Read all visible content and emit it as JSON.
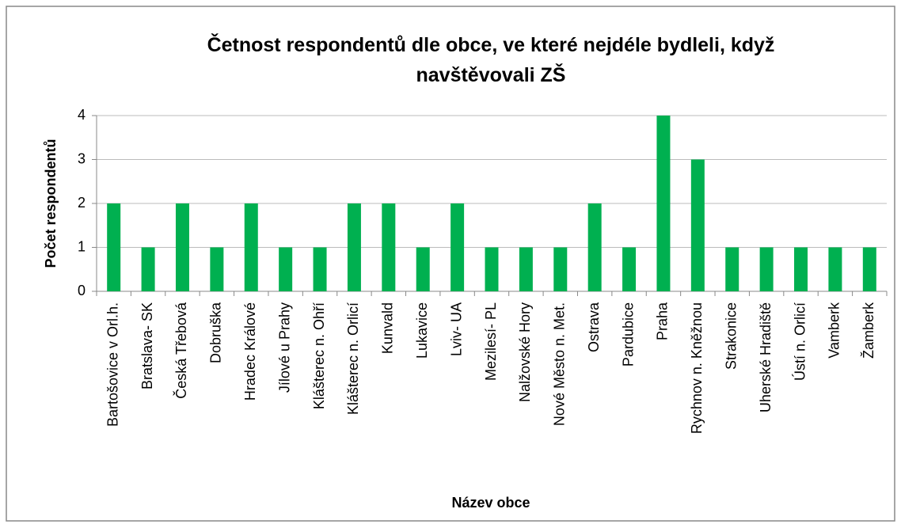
{
  "chart_data": {
    "type": "bar",
    "title": "Četnost respondentů dle obce, ve které nejdéle bydleli, když navštěvovali ZŠ",
    "xlabel": "Název obce",
    "ylabel": "Počet respondentů",
    "categories": [
      "Bartošovice v Orl.h.",
      "Bratslava- SK",
      "Česká Třebová",
      "Dobruška",
      "Hradec Králové",
      "Jílové u Prahy",
      "Klášterec n. Ohří",
      "Klášterec n. Orlicí",
      "Kunvald",
      "Lukavice",
      "Lviv- UA",
      "Mezilesí- PL",
      "Nalžovské Hory",
      "Nové Město n. Met.",
      "Ostrava",
      "Pardubice",
      "Praha",
      "Rychnov n. Kněžnou",
      "Strakonice",
      "Uherské Hradiště",
      "Ústí n. Orlicí",
      "Vamberk",
      "Žamberk"
    ],
    "values": [
      2,
      1,
      2,
      1,
      2,
      1,
      1,
      2,
      2,
      1,
      2,
      1,
      1,
      1,
      2,
      1,
      4,
      3,
      1,
      1,
      1,
      1,
      1
    ],
    "color": "#00b050",
    "ylim": [
      0,
      4
    ],
    "yticks": [
      0,
      1,
      2,
      3,
      4
    ],
    "grid": true
  }
}
